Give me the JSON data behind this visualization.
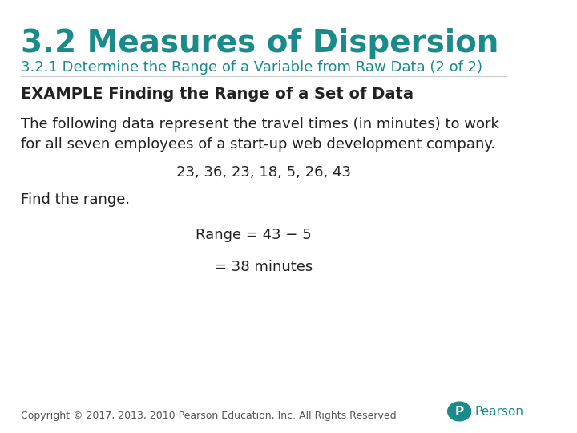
{
  "bg_color": "#ffffff",
  "title": "3.2 Measures of Dispersion",
  "title_color": "#1a8a8a",
  "title_fontsize": 28,
  "subtitle": "3.2.1 Determine the Range of a Variable from Raw Data (2 of 2)",
  "subtitle_color": "#1a8a8a",
  "subtitle_fontsize": 13,
  "example_heading": "EXAMPLE Finding the Range of a Set of Data",
  "example_heading_fontsize": 14,
  "body_text1": "The following data represent the travel times (in minutes) to work\nfor all seven employees of a start-up web development company.",
  "body_text1_fontsize": 13,
  "data_line": "23, 36, 23, 18, 5, 26, 43",
  "data_line_fontsize": 13,
  "find_range_text": "Find the range.",
  "find_range_fontsize": 13,
  "range_eq1": "Range = 43 − 5",
  "range_eq1_fontsize": 13,
  "range_eq2": "= 38 minutes",
  "range_eq2_fontsize": 13,
  "copyright_text": "Copyright © 2017, 2013, 2010 Pearson Education, Inc. All Rights Reserved",
  "copyright_fontsize": 9,
  "copyright_color": "#555555",
  "text_color": "#222222",
  "pearson_color": "#1a8a8a"
}
